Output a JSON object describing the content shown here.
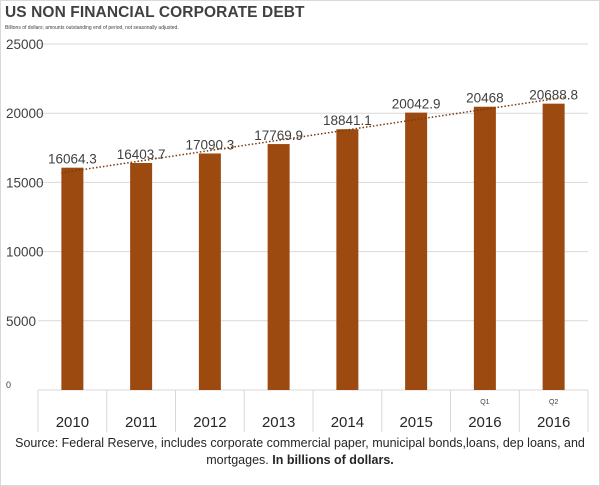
{
  "chart_data": {
    "type": "bar",
    "title": "US NON FINANCIAL CORPORATE DEBT",
    "subtitle": "Billions of dollars; amounts outstanding end of period, not seasonally adjusted.",
    "categories": [
      "2010",
      "2011",
      "2012",
      "2013",
      "2014",
      "2015",
      "2016",
      "2016"
    ],
    "category_sublabels": [
      "",
      "",
      "",
      "",
      "",
      "",
      "Q1",
      "Q2"
    ],
    "values": [
      16064.3,
      16403.7,
      17090.3,
      17769.9,
      18841.1,
      20042.9,
      20468,
      20688.8
    ],
    "data_labels": [
      "16064.3",
      "16403.7",
      "17090.3",
      "17769.9",
      "18841.1",
      "20042.9",
      "20468",
      "20688.8"
    ],
    "yticks": [
      "0",
      "5000",
      "10000",
      "15000",
      "20000",
      "25000"
    ],
    "ylim": [
      0,
      25000
    ],
    "xlabel": "",
    "ylabel": "",
    "grid": true,
    "trendline": true,
    "colors": {
      "bar": "#9c4a10",
      "trendline": "#7a3a0a",
      "grid": "#d9d9d9"
    }
  },
  "source": {
    "text": "Source:  Federal Reserve, includes corporate commercial paper, municipal bonds,loans, dep loans, and mortgages.",
    "bold": "In billions of dollars."
  }
}
